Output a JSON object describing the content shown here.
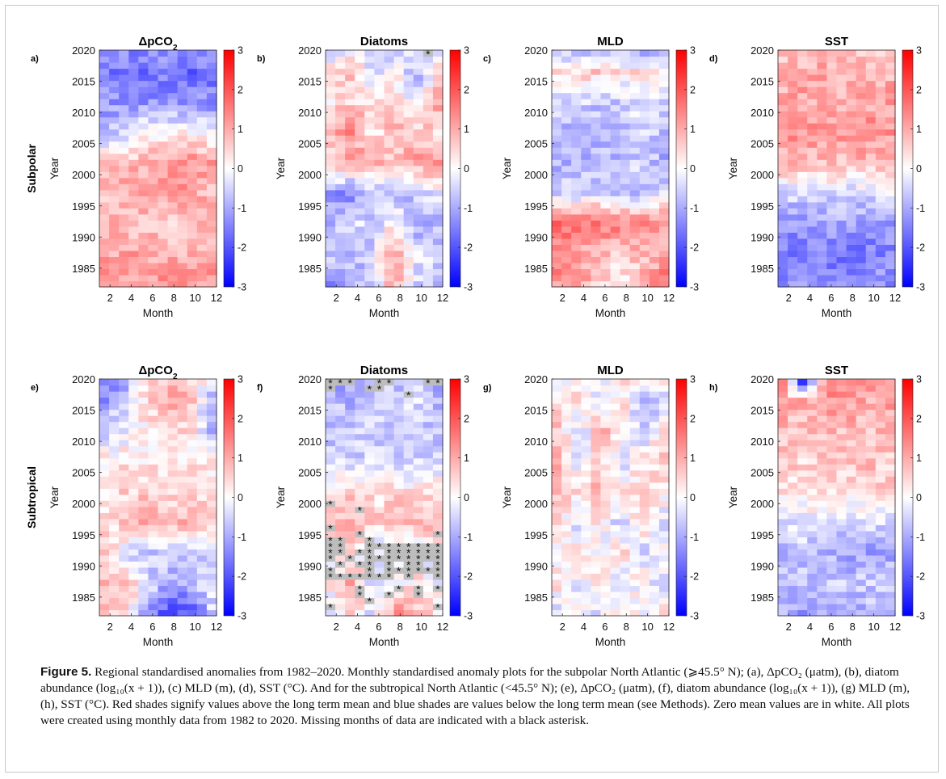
{
  "figure": {
    "row_labels": [
      "Subpolar",
      "Subtropical"
    ],
    "colorbar": {
      "ticks": [
        "3",
        "2",
        "1",
        "0",
        "-1",
        "-2",
        "-3"
      ],
      "colors": {
        "max": "#ff0000",
        "mid": "#ffffff",
        "min": "#0000ff"
      }
    },
    "missing_marker": "*",
    "missing_fill": "#bdbdbd"
  },
  "caption": {
    "label": "Figure 5.",
    "text": " Regional standardised anomalies from 1982–2020. Monthly standardised anomaly plots for the subpolar North Atlantic (⩾45.5° N); (a), ΔpCO₂ (μatm), (b), diatom abundance (log₁₀(x + 1)), (c) MLD (m), (d), SST (°C). And for the subtropical North Atlantic (<45.5° N); (e), ΔpCO₂ (μatm), (f), diatom abundance (log₁₀(x + 1)), (g) MLD (m), (h), SST (°C). Red shades signify values above the long term mean and blue shades are values below the long term mean (see Methods). Zero mean values are in white. All plots were created using monthly data from 1982 to 2020. Missing months of data are indicated with a black asterisk."
  },
  "chart_data": [
    {
      "type": "heatmap",
      "panel": "a)",
      "title": "ΔpCO2",
      "xlabel": "Month",
      "ylabel": "Year",
      "xlim": [
        1,
        12
      ],
      "ylim": [
        1982,
        2020
      ],
      "xticks": [
        2,
        4,
        6,
        8,
        10,
        12
      ],
      "yticks": [
        1985,
        1990,
        1995,
        2000,
        2005,
        2010,
        2015,
        2020
      ],
      "clim": [
        -3,
        3
      ],
      "value_grid_years": [
        1982,
        1987,
        1992,
        1997,
        2002,
        2007,
        2012,
        2017,
        2020
      ],
      "values": [
        [
          1.2,
          1.2,
          1.3,
          1.2,
          1.1,
          1.3
        ],
        [
          1.0,
          1.1,
          1.0,
          0.9,
          0.9,
          1.0
        ],
        [
          0.9,
          0.8,
          0.7,
          0.6,
          0.7,
          0.8
        ],
        [
          0.8,
          0.9,
          1.1,
          1.2,
          1.0,
          0.8
        ],
        [
          0.6,
          0.8,
          0.9,
          1.3,
          1.4,
          1.1
        ],
        [
          -0.9,
          -0.4,
          0.1,
          0.3,
          0.1,
          -0.2
        ],
        [
          -1.2,
          -1.3,
          -1.2,
          -1.4,
          -1.3,
          -1.3
        ],
        [
          -1.6,
          -1.5,
          -1.7,
          -1.5,
          -1.8,
          -1.6
        ],
        [
          -1.3,
          -1.4,
          -1.3,
          -1.3,
          -1.2,
          -1.4
        ]
      ],
      "missing": []
    },
    {
      "type": "heatmap",
      "panel": "b)",
      "title": "Diatoms",
      "xlabel": "Month",
      "ylabel": "Year",
      "xlim": [
        1,
        12
      ],
      "ylim": [
        1982,
        2020
      ],
      "xticks": [
        2,
        4,
        6,
        8,
        10,
        12
      ],
      "yticks": [
        1985,
        1990,
        1995,
        2000,
        2005,
        2010,
        2015,
        2020
      ],
      "clim": [
        -3,
        3
      ],
      "value_grid_years": [
        1982,
        1987,
        1992,
        1997,
        2002,
        2007,
        2012,
        2017,
        2020
      ],
      "values": [
        [
          -1.3,
          -0.9,
          -0.6,
          1.2,
          -0.5,
          -0.8
        ],
        [
          -0.6,
          -0.8,
          -0.4,
          1.1,
          -0.3,
          -0.5
        ],
        [
          -1.0,
          -0.2,
          -0.8,
          0.3,
          -1.1,
          -0.9
        ],
        [
          -1.2,
          -1.4,
          -0.7,
          -0.9,
          -0.6,
          -0.3
        ],
        [
          0.5,
          1.0,
          0.9,
          0.7,
          1.1,
          1.3
        ],
        [
          0.8,
          1.3,
          0.2,
          0.9,
          0.7,
          0.5
        ],
        [
          0.3,
          0.6,
          0.4,
          0.6,
          -0.3,
          1.0
        ],
        [
          0.6,
          0.7,
          -0.4,
          0.3,
          -0.9,
          0.4
        ],
        [
          -0.7,
          0.2,
          -0.4,
          -0.6,
          -0.2,
          -0.4
        ]
      ],
      "missing": [
        [
          11,
          2020
        ]
      ]
    },
    {
      "type": "heatmap",
      "panel": "c)",
      "title": "MLD",
      "xlabel": "Month",
      "ylabel": "Year",
      "xlim": [
        1,
        12
      ],
      "ylim": [
        1982,
        2020
      ],
      "xticks": [
        2,
        4,
        6,
        8,
        10,
        12
      ],
      "yticks": [
        1985,
        1990,
        1995,
        2000,
        2005,
        2010,
        2015,
        2020
      ],
      "clim": [
        -3,
        3
      ],
      "value_grid_years": [
        1982,
        1987,
        1992,
        1997,
        2002,
        2007,
        2012,
        2017,
        2020
      ],
      "values": [
        [
          1.3,
          1.2,
          0.5,
          0.2,
          0.8,
          1.6
        ],
        [
          1.4,
          1.0,
          0.9,
          0.5,
          0.8,
          1.0
        ],
        [
          1.8,
          1.6,
          1.7,
          1.4,
          1.5,
          1.3
        ],
        [
          -0.6,
          -0.5,
          -0.3,
          -0.8,
          -0.6,
          -0.4
        ],
        [
          -0.9,
          -0.7,
          -1.0,
          -0.8,
          -0.5,
          -1.1
        ],
        [
          -0.8,
          -1.1,
          -0.6,
          -0.9,
          -0.4,
          -0.7
        ],
        [
          -0.5,
          -0.4,
          -0.8,
          -0.6,
          -0.3,
          -0.5
        ],
        [
          0.4,
          0.5,
          0.6,
          0.3,
          0.5,
          0.4
        ],
        [
          -0.8,
          -0.6,
          -0.9,
          -0.5,
          -0.8,
          -0.9
        ]
      ],
      "missing": []
    },
    {
      "type": "heatmap",
      "panel": "d)",
      "title": "SST",
      "xlabel": "Month",
      "ylabel": "Year",
      "xlim": [
        1,
        12
      ],
      "ylim": [
        1982,
        2020
      ],
      "xticks": [
        2,
        4,
        6,
        8,
        10,
        12
      ],
      "yticks": [
        1985,
        1990,
        1995,
        2000,
        2005,
        2010,
        2015,
        2020
      ],
      "clim": [
        -3,
        3
      ],
      "value_grid_years": [
        1982,
        1987,
        1992,
        1997,
        2002,
        2007,
        2012,
        2017,
        2020
      ],
      "values": [
        [
          -1.3,
          -1.2,
          -1.4,
          -1.2,
          -1.1,
          -1.3
        ],
        [
          -1.5,
          -1.6,
          -1.5,
          -1.7,
          -1.5,
          -1.4
        ],
        [
          -1.2,
          -1.1,
          -1.3,
          -1.0,
          -1.2,
          -1.1
        ],
        [
          -0.4,
          -0.5,
          -0.3,
          -0.5,
          -0.4,
          -0.3
        ],
        [
          0.8,
          0.9,
          0.7,
          0.8,
          0.9,
          0.8
        ],
        [
          1.2,
          1.3,
          1.1,
          1.2,
          1.3,
          1.2
        ],
        [
          1.0,
          1.1,
          0.9,
          1.0,
          1.0,
          1.1
        ],
        [
          0.9,
          1.0,
          1.1,
          0.8,
          1.0,
          0.9
        ],
        [
          0.7,
          0.6,
          0.8,
          0.7,
          0.6,
          0.7
        ]
      ],
      "missing": []
    },
    {
      "type": "heatmap",
      "panel": "e)",
      "title": "ΔpCO2",
      "xlabel": "Month",
      "ylabel": "Year",
      "xlim": [
        1,
        12
      ],
      "ylim": [
        1982,
        2020
      ],
      "xticks": [
        2,
        4,
        6,
        8,
        10,
        12
      ],
      "yticks": [
        1985,
        1990,
        1995,
        2000,
        2005,
        2010,
        2015,
        2020
      ],
      "clim": [
        -3,
        3
      ],
      "value_grid_years": [
        1982,
        1987,
        1992,
        1997,
        2002,
        2007,
        2012,
        2017,
        2020
      ],
      "values": [
        [
          0.7,
          0.5,
          -1.2,
          -2.2,
          -2.0,
          -0.6
        ],
        [
          0.9,
          0.8,
          -0.3,
          -1.0,
          -0.9,
          -0.3
        ],
        [
          0.5,
          -0.3,
          -0.8,
          -0.5,
          -0.4,
          -0.6
        ],
        [
          0.4,
          0.6,
          0.9,
          1.0,
          0.8,
          0.5
        ],
        [
          0.3,
          0.5,
          0.6,
          0.4,
          0.5,
          0.3
        ],
        [
          0.2,
          0.4,
          0.3,
          0.2,
          0.3,
          0.1
        ],
        [
          -0.5,
          -0.3,
          0.2,
          0.6,
          0.4,
          -0.9
        ],
        [
          -1.2,
          -0.5,
          0.5,
          1.2,
          0.8,
          -0.9
        ],
        [
          -1.4,
          -1.1,
          0.4,
          0.9,
          0.7,
          -0.3
        ]
      ],
      "missing": []
    },
    {
      "type": "heatmap",
      "panel": "f)",
      "title": "Diatoms",
      "xlabel": "Month",
      "ylabel": "Year",
      "xlim": [
        1,
        12
      ],
      "ylim": [
        1982,
        2020
      ],
      "xticks": [
        2,
        4,
        6,
        8,
        10,
        12
      ],
      "yticks": [
        1985,
        1990,
        1995,
        2000,
        2005,
        2010,
        2015,
        2020
      ],
      "clim": [
        -3,
        3
      ],
      "value_grid_years": [
        1982,
        1987,
        1992,
        1997,
        2002,
        2007,
        2012,
        2017,
        2020
      ],
      "values": [
        [
          -0.5,
          0.6,
          -0.4,
          1.5,
          0.8,
          0.3
        ],
        [
          0.4,
          1.0,
          -0.6,
          -0.3,
          0.5,
          -0.2
        ],
        [
          -0.2,
          0.3,
          -0.4,
          -0.5,
          -0.3,
          -0.2
        ],
        [
          0.9,
          1.0,
          0.5,
          0.7,
          0.8,
          0.9
        ],
        [
          0.4,
          0.6,
          0.3,
          0.5,
          0.2,
          0.3
        ],
        [
          -0.4,
          -0.6,
          -0.3,
          -0.7,
          -0.5,
          -0.4
        ],
        [
          -0.8,
          -0.5,
          -0.6,
          -0.7,
          -0.6,
          -0.8
        ],
        [
          -0.6,
          -0.9,
          -0.4,
          -0.5,
          -0.3,
          -0.8
        ],
        [
          -1.2,
          -1.0,
          -0.6,
          -0.8,
          -0.7,
          -1.0
        ]
      ],
      "missing": [
        [
          1,
          2020
        ],
        [
          2,
          2020
        ],
        [
          3,
          2020
        ],
        [
          6,
          2020
        ],
        [
          7,
          2020
        ],
        [
          11,
          2020
        ],
        [
          12,
          2020
        ],
        [
          1,
          2019
        ],
        [
          5,
          2019
        ],
        [
          6,
          2019
        ],
        [
          9,
          2018
        ],
        [
          1,
          2000
        ],
        [
          4,
          1999
        ],
        [
          1,
          1996
        ],
        [
          4,
          1995
        ],
        [
          12,
          1995
        ],
        [
          1,
          1994
        ],
        [
          2,
          1994
        ],
        [
          5,
          1994
        ],
        [
          1,
          1993
        ],
        [
          2,
          1993
        ],
        [
          5,
          1993
        ],
        [
          6,
          1993
        ],
        [
          7,
          1993
        ],
        [
          8,
          1993
        ],
        [
          9,
          1993
        ],
        [
          10,
          1993
        ],
        [
          11,
          1993
        ],
        [
          12,
          1993
        ],
        [
          1,
          1992
        ],
        [
          2,
          1992
        ],
        [
          4,
          1992
        ],
        [
          5,
          1992
        ],
        [
          7,
          1992
        ],
        [
          8,
          1992
        ],
        [
          9,
          1992
        ],
        [
          10,
          1992
        ],
        [
          11,
          1992
        ],
        [
          12,
          1992
        ],
        [
          1,
          1991
        ],
        [
          3,
          1991
        ],
        [
          5,
          1991
        ],
        [
          6,
          1991
        ],
        [
          7,
          1991
        ],
        [
          8,
          1991
        ],
        [
          9,
          1991
        ],
        [
          10,
          1991
        ],
        [
          11,
          1991
        ],
        [
          12,
          1991
        ],
        [
          2,
          1990
        ],
        [
          4,
          1990
        ],
        [
          5,
          1990
        ],
        [
          7,
          1990
        ],
        [
          9,
          1990
        ],
        [
          10,
          1990
        ],
        [
          12,
          1990
        ],
        [
          1,
          1989
        ],
        [
          5,
          1989
        ],
        [
          7,
          1989
        ],
        [
          8,
          1989
        ],
        [
          9,
          1989
        ],
        [
          10,
          1989
        ],
        [
          11,
          1989
        ],
        [
          12,
          1989
        ],
        [
          1,
          1988
        ],
        [
          2,
          1988
        ],
        [
          3,
          1988
        ],
        [
          4,
          1988
        ],
        [
          5,
          1988
        ],
        [
          6,
          1988
        ],
        [
          7,
          1988
        ],
        [
          9,
          1988
        ],
        [
          12,
          1988
        ],
        [
          4,
          1986
        ],
        [
          8,
          1986
        ],
        [
          10,
          1986
        ],
        [
          12,
          1986
        ],
        [
          4,
          1985
        ],
        [
          7,
          1985
        ],
        [
          10,
          1985
        ],
        [
          5,
          1984
        ],
        [
          1,
          1983
        ],
        [
          12,
          1983
        ]
      ]
    },
    {
      "type": "heatmap",
      "panel": "g)",
      "title": "MLD",
      "xlabel": "Month",
      "ylabel": "Year",
      "xlim": [
        1,
        12
      ],
      "ylim": [
        1982,
        2020
      ],
      "xticks": [
        2,
        4,
        6,
        8,
        10,
        12
      ],
      "yticks": [
        1985,
        1990,
        1995,
        2000,
        2005,
        2010,
        2015,
        2020
      ],
      "clim": [
        -3,
        3
      ],
      "value_grid_years": [
        1982,
        1987,
        1992,
        1997,
        2002,
        2007,
        2012,
        2017,
        2020
      ],
      "values": [
        [
          -0.6,
          0.4,
          -0.5,
          0.6,
          -0.3,
          0.5
        ],
        [
          0.5,
          -0.4,
          0.7,
          -0.5,
          0.3,
          -0.6
        ],
        [
          -0.3,
          0.6,
          -0.4,
          0.5,
          -0.6,
          0.3
        ],
        [
          0.4,
          -0.5,
          0.3,
          -0.7,
          0.6,
          -0.4
        ],
        [
          0.8,
          0.5,
          0.9,
          0.4,
          0.6,
          0.3
        ],
        [
          0.9,
          -0.4,
          0.6,
          -0.5,
          0.3,
          0.6
        ],
        [
          0.7,
          -0.6,
          0.8,
          0.5,
          -0.7,
          0.4
        ],
        [
          0.5,
          0.6,
          -0.4,
          0.5,
          -0.8,
          -0.6
        ],
        [
          -0.5,
          0.3,
          -0.4,
          0.4,
          -0.3,
          0.2
        ]
      ],
      "missing": []
    },
    {
      "type": "heatmap",
      "panel": "h)",
      "title": "SST",
      "xlabel": "Month",
      "ylabel": "Year",
      "xlim": [
        1,
        12
      ],
      "ylim": [
        1982,
        2020
      ],
      "xticks": [
        2,
        4,
        6,
        8,
        10,
        12
      ],
      "yticks": [
        1985,
        1990,
        1995,
        2000,
        2005,
        2010,
        2015,
        2020
      ],
      "clim": [
        -3,
        3
      ],
      "value_grid_years": [
        1982,
        1987,
        1992,
        1997,
        2002,
        2007,
        2012,
        2017,
        2020
      ],
      "values": [
        [
          -1.0,
          -1.2,
          -0.9,
          -1.1,
          -0.8,
          -1.0
        ],
        [
          -0.6,
          -0.8,
          -0.5,
          -0.7,
          -0.6,
          -0.5
        ],
        [
          -0.8,
          -0.6,
          -0.9,
          -1.0,
          -1.2,
          -1.1
        ],
        [
          -0.3,
          -0.4,
          -0.2,
          -0.5,
          -0.3,
          -0.4
        ],
        [
          0.3,
          0.4,
          0.5,
          0.3,
          0.4,
          0.6
        ],
        [
          0.6,
          0.5,
          0.7,
          0.6,
          0.8,
          0.5
        ],
        [
          0.8,
          0.7,
          0.9,
          0.8,
          0.7,
          0.9
        ],
        [
          1.0,
          0.9,
          1.1,
          1.2,
          1.0,
          1.1
        ],
        [
          1.5,
          -2.6,
          1.6,
          1.3,
          1.4,
          1.2
        ]
      ],
      "missing": []
    }
  ]
}
